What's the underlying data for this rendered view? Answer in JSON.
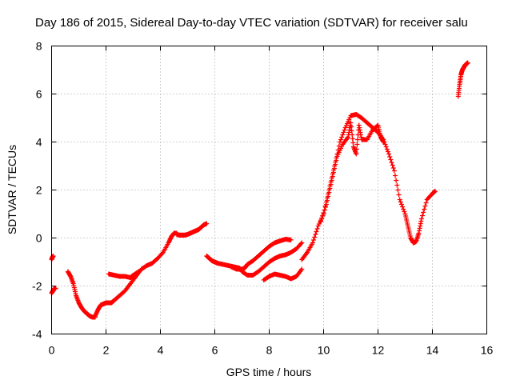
{
  "chart_data": {
    "type": "scatter",
    "title": "Day 186 of 2015, Sidereal Day-to-day VTEC variation (SDTVAR) for receiver salu",
    "xlabel": "GPS time / hours",
    "ylabel": "SDTVAR / TECUs",
    "xlim": [
      0,
      16
    ],
    "ylim": [
      -4,
      8
    ],
    "xticks": [
      "0",
      "2",
      "4",
      "6",
      "8",
      "10",
      "12",
      "14",
      "16"
    ],
    "yticks": [
      "-4",
      "-2",
      "0",
      "2",
      "4",
      "6",
      "8"
    ],
    "grid": true,
    "marker": "plus",
    "color": "#ff0000",
    "segments": [
      {
        "x": [
          0.0,
          0.03,
          0.06
        ],
        "y": [
          -0.9,
          -0.8,
          -0.75
        ]
      },
      {
        "x": [
          0.0,
          0.05,
          0.1,
          0.15
        ],
        "y": [
          -2.3,
          -2.2,
          -2.1,
          -2.1
        ]
      },
      {
        "x": [
          0.6,
          0.7,
          0.8,
          0.9,
          1.0,
          1.1,
          1.2,
          1.3,
          1.4,
          1.5,
          1.6
        ],
        "y": [
          -1.4,
          -1.6,
          -1.9,
          -2.4,
          -2.7,
          -2.9,
          -3.05,
          -3.15,
          -3.25,
          -3.3,
          -3.3
        ]
      },
      {
        "x": [
          1.6,
          1.7,
          1.8,
          1.9,
          2.0,
          2.1,
          2.2,
          2.3,
          2.5,
          2.7,
          2.9,
          3.1,
          3.3,
          3.5,
          3.7,
          3.9,
          4.1,
          4.3,
          4.4,
          4.5,
          4.6
        ],
        "y": [
          -3.25,
          -3.0,
          -2.8,
          -2.75,
          -2.7,
          -2.7,
          -2.7,
          -2.6,
          -2.4,
          -2.2,
          -1.9,
          -1.6,
          -1.3,
          -1.15,
          -1.05,
          -0.85,
          -0.6,
          -0.2,
          0.05,
          0.2,
          0.2
        ]
      },
      {
        "x": [
          2.1,
          2.3,
          2.5,
          2.7,
          2.9,
          3.0,
          3.2
        ],
        "y": [
          -1.5,
          -1.55,
          -1.6,
          -1.6,
          -1.65,
          -1.55,
          -1.4
        ]
      },
      {
        "x": [
          4.6,
          4.7,
          4.8,
          4.9,
          5.0,
          5.1,
          5.2,
          5.3,
          5.4,
          5.5,
          5.6,
          5.7
        ],
        "y": [
          0.15,
          0.12,
          0.12,
          0.12,
          0.15,
          0.2,
          0.25,
          0.3,
          0.35,
          0.45,
          0.55,
          0.6
        ]
      },
      {
        "x": [
          5.7,
          5.8,
          5.9,
          6.0,
          6.1,
          6.3,
          6.5,
          6.7,
          6.9,
          7.0
        ],
        "y": [
          -0.75,
          -0.85,
          -0.95,
          -1.0,
          -1.05,
          -1.1,
          -1.15,
          -1.2,
          -1.25,
          -1.35
        ]
      },
      {
        "x": [
          6.6,
          6.8,
          7.0,
          7.1,
          7.2,
          7.4,
          7.6,
          7.8,
          8.0,
          8.2,
          8.4,
          8.6,
          8.8
        ],
        "y": [
          -1.2,
          -1.3,
          -1.3,
          -1.25,
          -1.1,
          -0.95,
          -0.75,
          -0.55,
          -0.35,
          -0.2,
          -0.12,
          -0.05,
          -0.08
        ]
      },
      {
        "x": [
          7.0,
          7.2,
          7.4,
          7.6,
          7.8,
          8.0,
          8.2,
          8.4,
          8.6,
          8.8,
          9.0,
          9.2
        ],
        "y": [
          -1.4,
          -1.55,
          -1.55,
          -1.4,
          -1.2,
          -1.0,
          -0.85,
          -0.75,
          -0.7,
          -0.6,
          -0.45,
          -0.2
        ]
      },
      {
        "x": [
          7.8,
          8.0,
          8.2,
          8.4,
          8.6,
          8.8,
          9.0,
          9.2
        ],
        "y": [
          -1.75,
          -1.6,
          -1.5,
          -1.55,
          -1.6,
          -1.7,
          -1.6,
          -1.3
        ]
      },
      {
        "x": [
          9.2,
          9.4,
          9.6,
          9.8,
          10.0,
          10.2,
          10.4,
          10.6,
          10.8,
          11.0,
          11.2,
          11.4,
          11.6,
          11.8,
          12.0,
          12.2,
          12.4,
          12.6,
          12.8,
          13.0,
          13.1,
          13.2,
          13.3,
          13.4,
          13.5,
          13.6,
          13.8,
          14.0,
          14.1
        ],
        "y": [
          -0.9,
          -0.6,
          -0.2,
          0.5,
          1.0,
          2.0,
          3.0,
          4.0,
          4.6,
          5.1,
          5.15,
          5.0,
          4.8,
          4.6,
          4.4,
          4.1,
          3.5,
          2.8,
          1.6,
          1.0,
          0.5,
          0.0,
          -0.2,
          -0.15,
          0.2,
          0.8,
          1.6,
          1.85,
          1.95
        ]
      },
      {
        "x": [
          9.9,
          10.1,
          10.3,
          10.5,
          10.7,
          10.9,
          11.0,
          11.1,
          11.2,
          11.3,
          11.4,
          11.6,
          11.8,
          12.0,
          12.1,
          12.2
        ],
        "y": [
          0.7,
          1.4,
          2.4,
          3.4,
          3.9,
          4.2,
          4.8,
          3.8,
          3.5,
          4.7,
          4.1,
          4.1,
          4.5,
          4.7,
          4.2,
          4.0
        ]
      },
      {
        "x": [
          14.95,
          15.0,
          15.05,
          15.1,
          15.15,
          15.2,
          15.25,
          15.3
        ],
        "y": [
          5.9,
          6.4,
          6.8,
          7.0,
          7.1,
          7.2,
          7.25,
          7.3
        ]
      }
    ]
  }
}
